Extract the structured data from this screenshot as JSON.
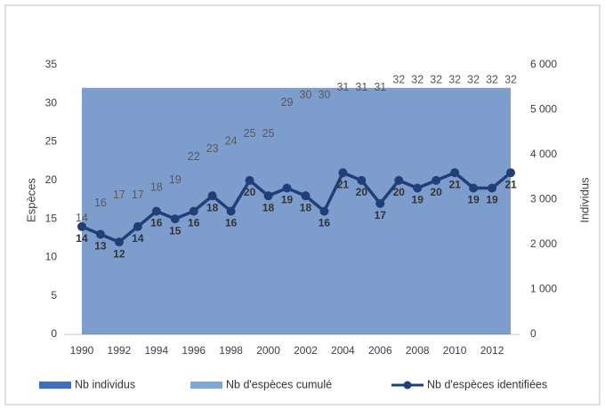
{
  "chart_data": {
    "type": "combo",
    "categories": [
      "1990",
      null,
      "1992",
      null,
      "1994",
      null,
      "1996",
      null,
      "1998",
      null,
      "2000",
      null,
      "2002",
      null,
      "2004",
      null,
      "2006",
      null,
      "2008",
      null,
      "2010",
      null,
      "2012",
      null
    ],
    "ylabel": "Espèces",
    "y2label": "Individus",
    "ylim": [
      0,
      35
    ],
    "yticks": [
      0,
      5,
      10,
      15,
      20,
      25,
      30,
      35
    ],
    "y2lim": [
      0,
      6000
    ],
    "y2ticks": [
      0,
      {
        "value": 1000,
        "label": "1 000"
      },
      {
        "value": 2000,
        "label": "2 000"
      },
      {
        "value": 3000,
        "label": "3 000"
      },
      {
        "value": 4000,
        "label": "4 000"
      },
      {
        "value": 5000,
        "label": "5 000"
      },
      {
        "value": 6000,
        "label": "6 000"
      }
    ],
    "series": [
      {
        "name": "Nb individus",
        "kind": "area",
        "axis": "y2",
        "color": "#3f6fb5",
        "values": [
          5490,
          5490,
          5490,
          5490,
          5490,
          5490,
          5490,
          5490,
          5490,
          5490,
          5490,
          5490,
          5490,
          5490,
          5490,
          5490,
          5490,
          5490,
          5490,
          5490,
          5490,
          5490,
          5490,
          5490
        ]
      },
      {
        "name": "Nb d'espèces cumulé",
        "kind": "labels",
        "color": "#595959",
        "values": [
          14,
          16,
          17,
          17,
          18,
          19,
          22,
          23,
          24,
          25,
          25,
          29,
          30,
          30,
          31,
          31,
          31,
          32,
          32,
          32,
          32,
          32,
          32,
          32
        ]
      },
      {
        "name": "Nb d'espèces identifiées",
        "kind": "line",
        "color": "#203f78",
        "values": [
          14,
          13,
          12,
          14,
          16,
          15,
          16,
          18,
          16,
          20,
          18,
          19,
          18,
          16,
          21,
          20,
          17,
          20,
          19,
          20,
          21,
          19,
          19,
          21
        ]
      }
    ]
  }
}
